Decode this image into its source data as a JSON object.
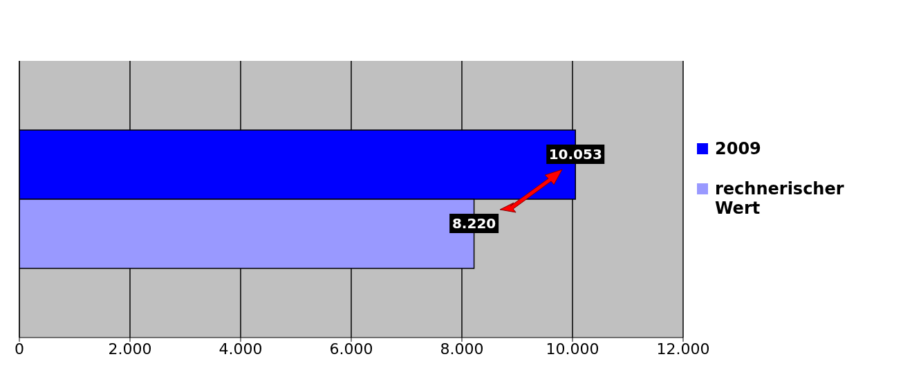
{
  "chart_data": {
    "type": "bar",
    "orientation": "horizontal",
    "categories": [
      null
    ],
    "series": [
      {
        "name": "2009",
        "color": "#0000ff",
        "values": [
          10053
        ],
        "value_labels": [
          "10.053"
        ]
      },
      {
        "name": "rechnerischer Wert",
        "color": "#9999ff",
        "values": [
          8220
        ],
        "value_labels": [
          "8.220"
        ]
      }
    ],
    "xlim": [
      0,
      12000
    ],
    "xticks": [
      0,
      {
        "value": 2000,
        "label": "2.000"
      },
      {
        "value": 4000,
        "label": "4.000"
      },
      {
        "value": 6000,
        "label": "6.000"
      },
      {
        "value": 8000,
        "label": "8.000"
      },
      {
        "value": 10000,
        "label": "10.000"
      },
      {
        "value": 12000,
        "label": "12.000"
      }
    ],
    "grid": "x",
    "legend": "right"
  }
}
